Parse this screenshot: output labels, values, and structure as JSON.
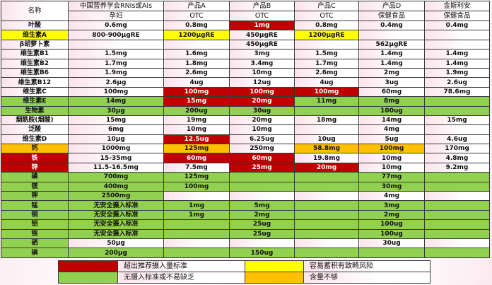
{
  "colors": {
    "r": "#c00000",
    "y": "#ffff00",
    "o": "#ffc000",
    "g": "#92d050"
  },
  "header": {
    "name_label": "名称",
    "columns": [
      {
        "title": "中国营养学会RNIs或Ais",
        "sub": "孕妇"
      },
      {
        "title": "产品A",
        "sub": "OTC"
      },
      {
        "title": "产品B",
        "sub": "OTC"
      },
      {
        "title": "产品C",
        "sub": "OTC"
      },
      {
        "title": "产品D",
        "sub": "保健食品"
      },
      {
        "title": "金斯利安",
        "sub": "保健食品"
      }
    ]
  },
  "rows": [
    {
      "name": "叶酸",
      "cells": [
        "0.6mg",
        "0.8mg",
        "1mg",
        "0.8mg",
        "0.4mg",
        "0.4mg"
      ],
      "colors": [
        "",
        "",
        "",
        "r",
        "",
        "",
        ""
      ]
    },
    {
      "name": "维生素A",
      "cells": [
        "800-900μgRE",
        "1200μgRE",
        "450μgRE",
        "1200μgRE",
        "",
        ""
      ],
      "colors": [
        "y",
        "",
        "y",
        "",
        "y",
        "",
        ""
      ]
    },
    {
      "name": "β胡萝卜素",
      "cells": [
        "",
        "",
        "450μgRE",
        "",
        "562μgRE",
        ""
      ],
      "colors": [
        "",
        "",
        "",
        "",
        "",
        "",
        ""
      ]
    },
    {
      "name": "维生素B1",
      "cells": [
        "1.5mg",
        "1.6mg",
        "3mg",
        "1.5mg",
        "1.4mg",
        "1.4mg"
      ],
      "colors": [
        "",
        "",
        "",
        "",
        "",
        "",
        ""
      ]
    },
    {
      "name": "维生素B2",
      "cells": [
        "1.7mg",
        "1.8mg",
        "3.4mg",
        "1.7mg",
        "1.4mg",
        "1.4mg"
      ],
      "colors": [
        "",
        "",
        "",
        "",
        "",
        "",
        ""
      ]
    },
    {
      "name": "维生素B6",
      "cells": [
        "1.9mg",
        "2.6mg",
        "10mg",
        "2.6mg",
        "2mg",
        "1.9mg"
      ],
      "colors": [
        "",
        "",
        "",
        "",
        "",
        "",
        ""
      ]
    },
    {
      "name": "维生素B12",
      "cells": [
        "2.6μg",
        "4ug",
        "12ug",
        "4ug",
        "3ug",
        "2.6ug"
      ],
      "colors": [
        "",
        "",
        "",
        "",
        "",
        "",
        ""
      ]
    },
    {
      "name": "维生素C",
      "cells": [
        "100mg",
        "100mg",
        "100mg",
        "100mg",
        "60mg",
        "78.6mg"
      ],
      "colors": [
        "",
        "",
        "r",
        "r",
        "r",
        "",
        ""
      ]
    },
    {
      "name": "维生素E",
      "cells": [
        "14mg",
        "15mg",
        "20mg",
        "11mg",
        "8mg",
        ""
      ],
      "colors": [
        "g",
        "g",
        "r",
        "r",
        "g",
        "g",
        "g"
      ]
    },
    {
      "name": "生物素",
      "cells": [
        "30μg",
        "200ug",
        "30ug",
        "",
        "100ug",
        ""
      ],
      "colors": [
        "g",
        "g",
        "g",
        "g",
        "g",
        "g",
        "g"
      ]
    },
    {
      "name": "烟酰胺(烟酸)",
      "cells": [
        "15mg",
        "19mg",
        "20mg",
        "18mg",
        "14mg",
        "15mg"
      ],
      "colors": [
        "",
        "",
        "",
        "",
        "",
        "",
        ""
      ]
    },
    {
      "name": "泛酸",
      "cells": [
        "6mg",
        "10mg",
        "10mg",
        "",
        "4mg",
        ""
      ],
      "colors": [
        "",
        "",
        "",
        "",
        "",
        "",
        ""
      ]
    },
    {
      "name": "维生素D",
      "cells": [
        "10μg",
        "12.5ug",
        "6.25ug",
        "10ug",
        "5ug",
        "4.6ug"
      ],
      "colors": [
        "",
        "",
        "r",
        "",
        "",
        "",
        ""
      ]
    },
    {
      "name": "钙",
      "cells": [
        "1000mg",
        "125mg",
        "250mg",
        "58.8mg",
        "100mg",
        "170mg"
      ],
      "colors": [
        "o",
        "",
        "o",
        "",
        "o",
        "o",
        ""
      ]
    },
    {
      "name": "铁",
      "cells": [
        "15-35mg",
        "60mg",
        "60mg",
        "19.8mg",
        "10mg",
        "4.8mg"
      ],
      "colors": [
        "r",
        "",
        "r",
        "r",
        "",
        "",
        ""
      ]
    },
    {
      "name": "锌",
      "cells": [
        "11.5-16.5mg",
        "7.5mg",
        "25mg",
        "20mg",
        "10mg",
        "9.2mg"
      ],
      "colors": [
        "r",
        "",
        "",
        "r",
        "r",
        "",
        ""
      ]
    },
    {
      "name": "磷",
      "cells": [
        "700mg",
        "125mg",
        "",
        "",
        "77mg",
        ""
      ],
      "colors": [
        "g",
        "g",
        "g",
        "g",
        "g",
        "g",
        "g"
      ]
    },
    {
      "name": "镁",
      "cells": [
        "400mg",
        "100mg",
        "",
        "",
        "30mg",
        ""
      ],
      "colors": [
        "g",
        "g",
        "g",
        "g",
        "g",
        "g",
        "g"
      ]
    },
    {
      "name": "钾",
      "cells": [
        "2500mg",
        "",
        "",
        "",
        "4mg",
        ""
      ],
      "colors": [
        "g",
        "g",
        "",
        "",
        "",
        "",
        ""
      ]
    },
    {
      "name": "锰",
      "cells": [
        "无安全摄入标准",
        "1mg",
        "5mg",
        "",
        "3mg",
        ""
      ],
      "colors": [
        "g",
        "g",
        "g",
        "g",
        "g",
        "g",
        "g"
      ]
    },
    {
      "name": "铜",
      "cells": [
        "无安全摄入标准",
        "1mg",
        "2mg",
        "",
        "2mg",
        ""
      ],
      "colors": [
        "g",
        "g",
        "g",
        "g",
        "g",
        "g",
        "g"
      ]
    },
    {
      "name": "钼",
      "cells": [
        "无安全摄入标准",
        "",
        "25ug",
        "",
        "100ug",
        ""
      ],
      "colors": [
        "g",
        "g",
        "g",
        "g",
        "g",
        "g",
        "g"
      ]
    },
    {
      "name": "铬",
      "cells": [
        "无安全摄入标准",
        "",
        "25ug",
        "",
        "100ug",
        ""
      ],
      "colors": [
        "g",
        "g",
        "g",
        "g",
        "g",
        "g",
        "g"
      ]
    },
    {
      "name": "硒",
      "cells": [
        "50μg",
        "",
        "",
        "",
        "30ug",
        ""
      ],
      "colors": [
        "g",
        "",
        "",
        "",
        "",
        "",
        ""
      ]
    },
    {
      "name": "碘",
      "cells": [
        "200μg",
        "",
        "150ug",
        "",
        "",
        ""
      ],
      "colors": [
        "g",
        "g",
        "g",
        "g",
        "g",
        "g",
        "g"
      ]
    }
  ],
  "legend": [
    {
      "color": "r",
      "label": "超出推荐摄入量标准"
    },
    {
      "color": "y",
      "label": "容易蓄积有致畸风险"
    },
    {
      "color": "g",
      "label": "无摄入标准或不易缺乏"
    },
    {
      "color": "o",
      "label": "含量不够"
    }
  ]
}
